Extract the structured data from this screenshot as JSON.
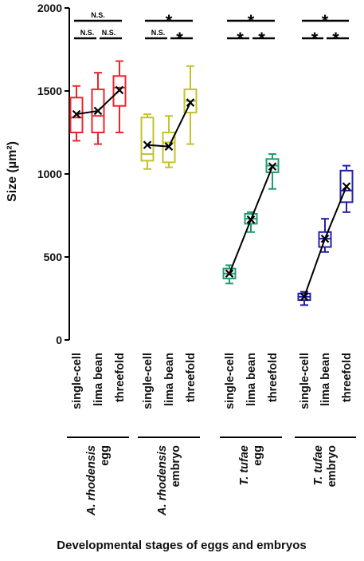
{
  "chart_data": {
    "type": "box",
    "ylabel": "Size (µm²)",
    "xlabel": "Developmental stages of eggs and embryos",
    "ylim": [
      0,
      2000
    ],
    "yticks": [
      0,
      500,
      1000,
      1500,
      2000
    ],
    "stages": [
      "single-cell",
      "lima bean",
      "threefold"
    ],
    "groups": [
      {
        "label_italic": "A. rhodensis",
        "label_plain": "egg",
        "color": "#e8262d",
        "boxes": [
          {
            "min": 1200,
            "q1": 1250,
            "median": 1340,
            "q3": 1460,
            "max": 1530,
            "mean": 1360
          },
          {
            "min": 1180,
            "q1": 1250,
            "median": 1350,
            "q3": 1510,
            "max": 1610,
            "mean": 1380
          },
          {
            "min": 1250,
            "q1": 1410,
            "median": 1520,
            "q3": 1590,
            "max": 1680,
            "mean": 1505
          }
        ],
        "sig_top": "N.S.",
        "sig_left": "N.S.",
        "sig_right": "N.S."
      },
      {
        "label_italic": "A. rhodensis",
        "label_plain": "embryo",
        "color": "#c5c22a",
        "boxes": [
          {
            "min": 1030,
            "q1": 1080,
            "median": 1120,
            "q3": 1340,
            "max": 1360,
            "mean": 1175
          },
          {
            "min": 1040,
            "q1": 1070,
            "median": 1190,
            "q3": 1250,
            "max": 1350,
            "mean": 1165
          },
          {
            "min": 1180,
            "q1": 1370,
            "median": 1440,
            "q3": 1510,
            "max": 1650,
            "mean": 1430
          }
        ],
        "sig_top": "*",
        "sig_left": "N.S.",
        "sig_right": "*"
      },
      {
        "label_italic": "T. tufae",
        "label_plain": "egg",
        "color": "#1f9b72",
        "boxes": [
          {
            "min": 340,
            "q1": 370,
            "median": 400,
            "q3": 430,
            "max": 450,
            "mean": 400
          },
          {
            "min": 650,
            "q1": 700,
            "median": 730,
            "q3": 760,
            "max": 770,
            "mean": 725
          },
          {
            "min": 910,
            "q1": 1010,
            "median": 1050,
            "q3": 1090,
            "max": 1120,
            "mean": 1045
          }
        ],
        "sig_top": "*",
        "sig_left": "*",
        "sig_right": "*"
      },
      {
        "label_italic": "T. tufae",
        "label_plain": "embryo",
        "color": "#2222a8",
        "boxes": [
          {
            "min": 210,
            "q1": 240,
            "median": 260,
            "q3": 280,
            "max": 290,
            "mean": 260
          },
          {
            "min": 530,
            "q1": 560,
            "median": 610,
            "q3": 650,
            "max": 730,
            "mean": 610
          },
          {
            "min": 770,
            "q1": 830,
            "median": 900,
            "q3": 1020,
            "max": 1050,
            "mean": 925
          }
        ],
        "sig_top": "*",
        "sig_left": "*",
        "sig_right": "*"
      }
    ]
  }
}
